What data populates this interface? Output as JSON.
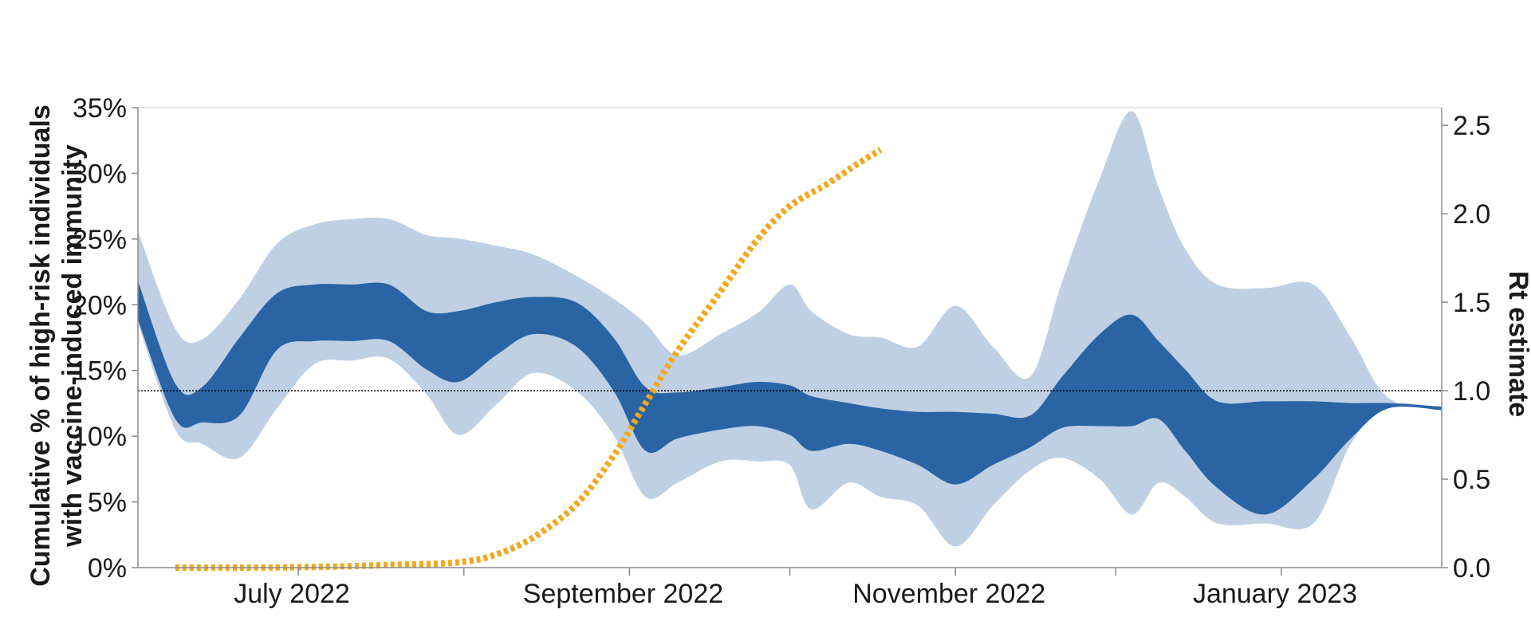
{
  "chart_data": {
    "type": "area",
    "x_axis": {
      "type": "date",
      "range": [
        "2022-06-01",
        "2023-01-31"
      ],
      "tick_labels": [
        {
          "date": "2022-07-01",
          "label": "July 2022"
        },
        {
          "date": "2022-09-01",
          "label": "September 2022"
        },
        {
          "date": "2022-11-01",
          "label": "November 2022"
        },
        {
          "date": "2023-01-01",
          "label": "January 2023"
        }
      ],
      "minor_ticks": [
        "2022-08-01",
        "2022-10-01",
        "2022-12-01"
      ]
    },
    "y_left": {
      "label": "Cumulative % of high-risk individuals with vaccine-induced immunity",
      "label_lines": [
        "Cumulative % of high-risk individuals",
        "with vaccine-induced immunity"
      ],
      "range": [
        0,
        35
      ],
      "ticks": [
        0,
        5,
        10,
        15,
        20,
        25,
        30,
        35
      ],
      "tick_labels": [
        "0%",
        "5%",
        "10%",
        "15%",
        "20%",
        "25%",
        "30%",
        "35%"
      ]
    },
    "y_right": {
      "label": "Rt estimate",
      "range": [
        0,
        2.6
      ],
      "ticks": [
        0,
        0.5,
        1.0,
        1.5,
        2.0,
        2.5
      ],
      "tick_labels": [
        "0.0",
        "0.5",
        "1.0",
        "1.5",
        "2.0",
        "2.5"
      ]
    },
    "reference_line": {
      "axis": "right",
      "value": 1.0,
      "style": "dotted",
      "color": "#000000"
    },
    "colors": {
      "outer_band": "#bfd0e4",
      "inner_band": "#2a64a4",
      "vaccine_line": "#f2a81d"
    },
    "series": [
      {
        "kind": "band",
        "axis": "right",
        "points": [
          [
            "2022-06-01",
            1.38,
            1.9
          ],
          [
            "2022-06-08",
            0.78,
            1.35
          ],
          [
            "2022-06-13",
            0.7,
            1.29
          ],
          [
            "2022-06-20",
            0.62,
            1.52
          ],
          [
            "2022-06-27",
            0.9,
            1.83
          ],
          [
            "2022-07-04",
            1.15,
            1.94
          ],
          [
            "2022-07-11",
            1.17,
            1.97
          ],
          [
            "2022-07-18",
            1.18,
            1.97
          ],
          [
            "2022-07-25",
            0.98,
            1.88
          ],
          [
            "2022-07-31",
            0.75,
            1.86
          ],
          [
            "2022-08-07",
            0.92,
            1.82
          ],
          [
            "2022-08-14",
            1.1,
            1.77
          ],
          [
            "2022-08-22",
            1.0,
            1.65
          ],
          [
            "2022-08-29",
            0.75,
            1.52
          ],
          [
            "2022-09-04",
            0.4,
            1.38
          ],
          [
            "2022-09-10",
            0.48,
            1.2
          ],
          [
            "2022-09-18",
            0.6,
            1.32
          ],
          [
            "2022-09-25",
            0.6,
            1.44
          ],
          [
            "2022-10-01",
            0.58,
            1.6
          ],
          [
            "2022-10-05",
            0.33,
            1.45
          ],
          [
            "2022-10-12",
            0.48,
            1.32
          ],
          [
            "2022-10-18",
            0.4,
            1.3
          ],
          [
            "2022-10-25",
            0.35,
            1.25
          ],
          [
            "2022-11-01",
            0.12,
            1.48
          ],
          [
            "2022-11-08",
            0.35,
            1.25
          ],
          [
            "2022-11-15",
            0.55,
            1.08
          ],
          [
            "2022-11-21",
            0.62,
            1.62
          ],
          [
            "2022-11-28",
            0.5,
            2.2
          ],
          [
            "2022-12-04",
            0.3,
            2.58
          ],
          [
            "2022-12-09",
            0.48,
            2.15
          ],
          [
            "2022-12-14",
            0.4,
            1.8
          ],
          [
            "2022-12-20",
            0.25,
            1.6
          ],
          [
            "2022-12-29",
            0.25,
            1.58
          ],
          [
            "2023-01-07",
            0.25,
            1.6
          ],
          [
            "2023-01-14",
            0.7,
            1.3
          ],
          [
            "2023-01-21",
            0.92,
            0.96
          ],
          [
            "2023-01-31",
            0.9,
            0.91
          ]
        ]
      },
      {
        "kind": "band",
        "axis": "right",
        "points": [
          [
            "2022-06-01",
            1.4,
            1.62
          ],
          [
            "2022-06-08",
            0.84,
            1.04
          ],
          [
            "2022-06-13",
            0.82,
            1.02
          ],
          [
            "2022-06-20",
            0.86,
            1.3
          ],
          [
            "2022-06-27",
            1.23,
            1.55
          ],
          [
            "2022-07-04",
            1.28,
            1.6
          ],
          [
            "2022-07-11",
            1.28,
            1.6
          ],
          [
            "2022-07-18",
            1.28,
            1.6
          ],
          [
            "2022-07-25",
            1.12,
            1.45
          ],
          [
            "2022-07-31",
            1.05,
            1.45
          ],
          [
            "2022-08-07",
            1.2,
            1.5
          ],
          [
            "2022-08-14",
            1.32,
            1.53
          ],
          [
            "2022-08-22",
            1.25,
            1.5
          ],
          [
            "2022-08-29",
            1.0,
            1.3
          ],
          [
            "2022-09-04",
            0.66,
            1.02
          ],
          [
            "2022-09-10",
            0.73,
            0.99
          ],
          [
            "2022-09-18",
            0.78,
            1.02
          ],
          [
            "2022-09-25",
            0.8,
            1.05
          ],
          [
            "2022-10-01",
            0.75,
            1.03
          ],
          [
            "2022-10-05",
            0.66,
            0.97
          ],
          [
            "2022-10-12",
            0.7,
            0.93
          ],
          [
            "2022-10-18",
            0.66,
            0.9
          ],
          [
            "2022-10-25",
            0.58,
            0.88
          ],
          [
            "2022-11-01",
            0.47,
            0.88
          ],
          [
            "2022-11-08",
            0.58,
            0.87
          ],
          [
            "2022-11-15",
            0.68,
            0.86
          ],
          [
            "2022-11-21",
            0.79,
            1.08
          ],
          [
            "2022-11-28",
            0.8,
            1.32
          ],
          [
            "2022-12-04",
            0.8,
            1.43
          ],
          [
            "2022-12-09",
            0.84,
            1.28
          ],
          [
            "2022-12-14",
            0.66,
            1.12
          ],
          [
            "2022-12-20",
            0.45,
            0.94
          ],
          [
            "2022-12-29",
            0.3,
            0.94
          ],
          [
            "2023-01-07",
            0.5,
            0.94
          ],
          [
            "2023-01-14",
            0.73,
            0.93
          ],
          [
            "2023-01-21",
            0.9,
            0.93
          ],
          [
            "2023-01-31",
            0.89,
            0.91
          ]
        ]
      },
      {
        "kind": "line",
        "axis": "left",
        "style": "dotted",
        "points": [
          [
            "2022-06-08",
            0
          ],
          [
            "2022-06-20",
            0
          ],
          [
            "2022-07-04",
            0.05
          ],
          [
            "2022-07-18",
            0.2
          ],
          [
            "2022-07-31",
            0.4
          ],
          [
            "2022-08-07",
            1.0
          ],
          [
            "2022-08-14",
            2.3
          ],
          [
            "2022-08-22",
            4.8
          ],
          [
            "2022-08-29",
            8.5
          ],
          [
            "2022-09-04",
            12.5
          ],
          [
            "2022-09-10",
            16.5
          ],
          [
            "2022-09-18",
            21.0
          ],
          [
            "2022-09-25",
            25.0
          ],
          [
            "2022-10-01",
            27.5
          ],
          [
            "2022-10-08",
            29.2
          ],
          [
            "2022-10-14",
            30.8
          ],
          [
            "2022-10-18",
            31.8
          ]
        ]
      }
    ]
  }
}
